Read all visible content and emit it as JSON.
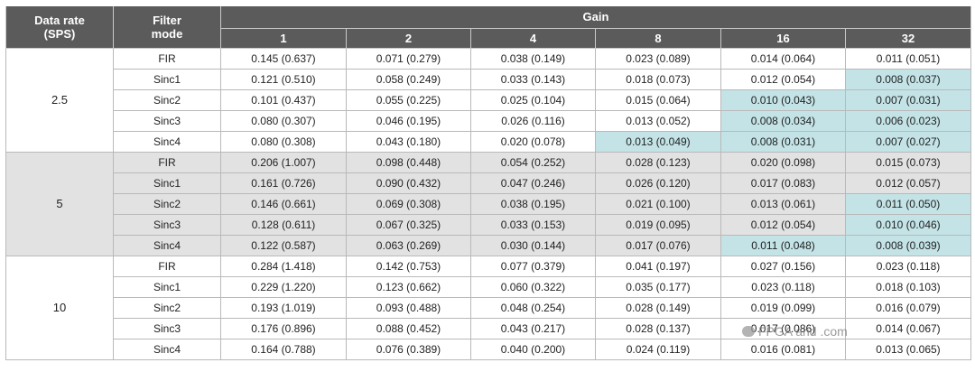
{
  "header": {
    "data_rate_label": "Data rate",
    "data_rate_unit": "(SPS)",
    "filter_label": "Filter",
    "filter_label_2": "mode",
    "gain_label": "Gain",
    "gains": [
      "1",
      "2",
      "4",
      "8",
      "16",
      "32"
    ]
  },
  "groups": [
    {
      "rate": "2.5",
      "rows": [
        {
          "filter": "FIR",
          "values": [
            "0.145 (0.637)",
            "0.071 (0.279)",
            "0.038 (0.149)",
            "0.023 (0.089)",
            "0.014 (0.064)",
            "0.011 (0.051)"
          ],
          "highlight": []
        },
        {
          "filter": "Sinc1",
          "values": [
            "0.121 (0.510)",
            "0.058 (0.249)",
            "0.033 (0.143)",
            "0.018 (0.073)",
            "0.012 (0.054)",
            "0.008 (0.037)"
          ],
          "highlight": [
            5
          ]
        },
        {
          "filter": "Sinc2",
          "values": [
            "0.101 (0.437)",
            "0.055 (0.225)",
            "0.025 (0.104)",
            "0.015 (0.064)",
            "0.010 (0.043)",
            "0.007 (0.031)"
          ],
          "highlight": [
            4,
            5
          ]
        },
        {
          "filter": "Sinc3",
          "values": [
            "0.080 (0.307)",
            "0.046 (0.195)",
            "0.026 (0.116)",
            "0.013 (0.052)",
            "0.008 (0.034)",
            "0.006 (0.023)"
          ],
          "highlight": [
            4,
            5
          ]
        },
        {
          "filter": "Sinc4",
          "values": [
            "0.080 (0.308)",
            "0.043 (0.180)",
            "0.020 (0.078)",
            "0.013 (0.049)",
            "0.008 (0.031)",
            "0.007 (0.027)"
          ],
          "highlight": [
            3,
            4,
            5
          ]
        }
      ]
    },
    {
      "rate": "5",
      "rows": [
        {
          "filter": "FIR",
          "values": [
            "0.206 (1.007)",
            "0.098 (0.448)",
            "0.054 (0.252)",
            "0.028 (0.123)",
            "0.020 (0.098)",
            "0.015 (0.073)"
          ],
          "highlight": []
        },
        {
          "filter": "Sinc1",
          "values": [
            "0.161 (0.726)",
            "0.090 (0.432)",
            "0.047 (0.246)",
            "0.026 (0.120)",
            "0.017 (0.083)",
            "0.012 (0.057)"
          ],
          "highlight": []
        },
        {
          "filter": "Sinc2",
          "values": [
            "0.146 (0.661)",
            "0.069 (0.308)",
            "0.038 (0.195)",
            "0.021 (0.100)",
            "0.013 (0.061)",
            "0.011 (0.050)"
          ],
          "highlight": [
            5
          ]
        },
        {
          "filter": "Sinc3",
          "values": [
            "0.128 (0.611)",
            "0.067 (0.325)",
            "0.033 (0.153)",
            "0.019 (0.095)",
            "0.012 (0.054)",
            "0.010 (0.046)"
          ],
          "highlight": [
            5
          ]
        },
        {
          "filter": "Sinc4",
          "values": [
            "0.122 (0.587)",
            "0.063 (0.269)",
            "0.030 (0.144)",
            "0.017 (0.076)",
            "0.011 (0.048)",
            "0.008 (0.039)"
          ],
          "highlight": [
            4,
            5
          ]
        }
      ]
    },
    {
      "rate": "10",
      "rows": [
        {
          "filter": "FIR",
          "values": [
            "0.284 (1.418)",
            "0.142 (0.753)",
            "0.077 (0.379)",
            "0.041 (0.197)",
            "0.027 (0.156)",
            "0.023 (0.118)"
          ],
          "highlight": []
        },
        {
          "filter": "Sinc1",
          "values": [
            "0.229 (1.220)",
            "0.123 (0.662)",
            "0.060 (0.322)",
            "0.035 (0.177)",
            "0.023 (0.118)",
            "0.018 (0.103)"
          ],
          "highlight": []
        },
        {
          "filter": "Sinc2",
          "values": [
            "0.193 (1.019)",
            "0.093 (0.488)",
            "0.048 (0.254)",
            "0.028 (0.149)",
            "0.019 (0.099)",
            "0.016 (0.079)"
          ],
          "highlight": []
        },
        {
          "filter": "Sinc3",
          "values": [
            "0.176 (0.896)",
            "0.088 (0.452)",
            "0.043 (0.217)",
            "0.028 (0.137)",
            "0.017 (0.086)",
            "0.014 (0.067)"
          ],
          "highlight": []
        },
        {
          "filter": "Sinc4",
          "values": [
            "0.164 (0.788)",
            "0.076 (0.389)",
            "0.040 (0.200)",
            "0.024 (0.119)",
            "0.016 (0.081)",
            "0.013 (0.065)"
          ],
          "highlight": []
        }
      ]
    }
  ],
  "colors": {
    "header_bg": "#5b5b5b",
    "group_grey_bg": "#e2e2e3",
    "highlight_bg": "#c3e3e6"
  },
  "watermark": {
    "text": "FPGA and .com",
    "icon": "wechat-icon"
  }
}
